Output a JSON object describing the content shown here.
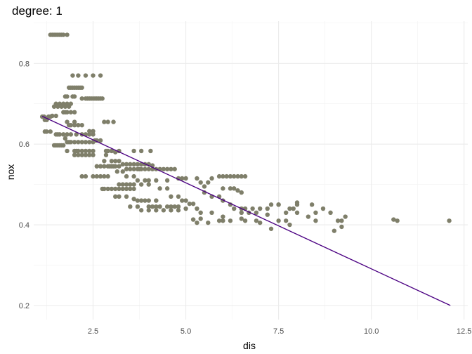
{
  "chart_data": {
    "type": "scatter",
    "title": "degree: 1",
    "xlabel": "dis",
    "ylabel": "nox",
    "xlim": [
      0.9,
      12.6
    ],
    "ylim": [
      0.165,
      0.905
    ],
    "xticks": [
      2.5,
      5.0,
      7.5,
      10.0,
      12.5
    ],
    "xtick_labels": [
      "2.5",
      "5.0",
      "7.5",
      "10.0",
      "12.5"
    ],
    "yticks": [
      0.2,
      0.4,
      0.6,
      0.8
    ],
    "ytick_labels": [
      "0.2",
      "0.4",
      "0.6",
      "0.8"
    ],
    "grid": true,
    "point_color": "#7f7f6a",
    "line_color": "#4b0082",
    "series": [
      {
        "type": "scatter",
        "points": [
          [
            1.35,
            0.871
          ],
          [
            1.4,
            0.871
          ],
          [
            1.45,
            0.871
          ],
          [
            1.5,
            0.871
          ],
          [
            1.55,
            0.871
          ],
          [
            1.6,
            0.871
          ],
          [
            1.65,
            0.871
          ],
          [
            1.7,
            0.871
          ],
          [
            1.8,
            0.871
          ],
          [
            1.13,
            0.668
          ],
          [
            1.18,
            0.668
          ],
          [
            1.2,
            0.66
          ],
          [
            1.25,
            0.66
          ],
          [
            1.3,
            0.668
          ],
          [
            1.35,
            0.668
          ],
          [
            1.4,
            0.67
          ],
          [
            1.5,
            0.67
          ],
          [
            1.45,
            0.693
          ],
          [
            1.5,
            0.7
          ],
          [
            1.55,
            0.693
          ],
          [
            1.6,
            0.7
          ],
          [
            1.65,
            0.693
          ],
          [
            1.7,
            0.7
          ],
          [
            1.75,
            0.693
          ],
          [
            1.8,
            0.7
          ],
          [
            1.85,
            0.693
          ],
          [
            1.9,
            0.7
          ],
          [
            1.75,
            0.718
          ],
          [
            1.8,
            0.718
          ],
          [
            1.95,
            0.718
          ],
          [
            2.0,
            0.718
          ],
          [
            2.1,
            0.77
          ],
          [
            1.95,
            0.77
          ],
          [
            2.3,
            0.77
          ],
          [
            2.5,
            0.77
          ],
          [
            2.7,
            0.77
          ],
          [
            1.85,
            0.74
          ],
          [
            1.9,
            0.74
          ],
          [
            1.95,
            0.74
          ],
          [
            2.0,
            0.74
          ],
          [
            2.05,
            0.74
          ],
          [
            2.1,
            0.74
          ],
          [
            2.15,
            0.74
          ],
          [
            2.2,
            0.74
          ],
          [
            2.2,
            0.713
          ],
          [
            2.3,
            0.713
          ],
          [
            2.35,
            0.713
          ],
          [
            2.4,
            0.713
          ],
          [
            2.45,
            0.713
          ],
          [
            2.5,
            0.713
          ],
          [
            2.55,
            0.713
          ],
          [
            2.6,
            0.713
          ],
          [
            2.65,
            0.713
          ],
          [
            2.7,
            0.713
          ],
          [
            2.75,
            0.713
          ],
          [
            1.7,
            0.679
          ],
          [
            1.8,
            0.679
          ],
          [
            1.9,
            0.679
          ],
          [
            2.0,
            0.679
          ],
          [
            1.75,
            0.679
          ],
          [
            1.8,
            0.655
          ],
          [
            1.85,
            0.647
          ],
          [
            1.9,
            0.647
          ],
          [
            2.0,
            0.647
          ],
          [
            2.1,
            0.647
          ],
          [
            2.2,
            0.647
          ],
          [
            2.0,
            0.655
          ],
          [
            1.2,
            0.631
          ],
          [
            1.25,
            0.631
          ],
          [
            1.35,
            0.631
          ],
          [
            1.55,
            0.624
          ],
          [
            1.5,
            0.624
          ],
          [
            1.6,
            0.624
          ],
          [
            1.7,
            0.624
          ],
          [
            1.75,
            0.614
          ],
          [
            1.8,
            0.605
          ],
          [
            1.85,
            0.605
          ],
          [
            1.9,
            0.605
          ],
          [
            2.0,
            0.605
          ],
          [
            2.1,
            0.605
          ],
          [
            2.2,
            0.605
          ],
          [
            2.3,
            0.605
          ],
          [
            2.4,
            0.605
          ],
          [
            2.5,
            0.605
          ],
          [
            1.8,
            0.624
          ],
          [
            1.9,
            0.624
          ],
          [
            2.05,
            0.624
          ],
          [
            2.2,
            0.624
          ],
          [
            2.3,
            0.624
          ],
          [
            2.4,
            0.624
          ],
          [
            2.5,
            0.624
          ],
          [
            2.4,
            0.632
          ],
          [
            2.5,
            0.632
          ],
          [
            2.55,
            0.609
          ],
          [
            2.6,
            0.609
          ],
          [
            2.7,
            0.609
          ],
          [
            2.8,
            0.655
          ],
          [
            2.9,
            0.655
          ],
          [
            3.05,
            0.655
          ],
          [
            1.45,
            0.597
          ],
          [
            1.5,
            0.597
          ],
          [
            1.55,
            0.597
          ],
          [
            1.6,
            0.597
          ],
          [
            1.65,
            0.597
          ],
          [
            1.7,
            0.597
          ],
          [
            1.8,
            0.583
          ],
          [
            2.0,
            0.583
          ],
          [
            2.05,
            0.583
          ],
          [
            2.1,
            0.583
          ],
          [
            2.2,
            0.583
          ],
          [
            2.3,
            0.583
          ],
          [
            2.4,
            0.583
          ],
          [
            2.5,
            0.583
          ],
          [
            2.0,
            0.573
          ],
          [
            2.1,
            0.573
          ],
          [
            2.2,
            0.573
          ],
          [
            2.3,
            0.573
          ],
          [
            2.4,
            0.573
          ],
          [
            2.5,
            0.573
          ],
          [
            2.85,
            0.583
          ],
          [
            2.9,
            0.583
          ],
          [
            3.0,
            0.583
          ],
          [
            3.1,
            0.58
          ],
          [
            3.2,
            0.583
          ],
          [
            2.85,
            0.573
          ],
          [
            3.6,
            0.583
          ],
          [
            3.8,
            0.583
          ],
          [
            4.05,
            0.583
          ],
          [
            2.2,
            0.52
          ],
          [
            2.3,
            0.52
          ],
          [
            2.5,
            0.52
          ],
          [
            2.6,
            0.52
          ],
          [
            2.7,
            0.52
          ],
          [
            2.8,
            0.52
          ],
          [
            2.9,
            0.52
          ],
          [
            2.6,
            0.545
          ],
          [
            2.7,
            0.545
          ],
          [
            2.8,
            0.545
          ],
          [
            2.9,
            0.545
          ],
          [
            2.95,
            0.545
          ],
          [
            3.0,
            0.545
          ],
          [
            3.05,
            0.545
          ],
          [
            3.1,
            0.545
          ],
          [
            3.2,
            0.545
          ],
          [
            2.8,
            0.558
          ],
          [
            3.0,
            0.558
          ],
          [
            3.1,
            0.558
          ],
          [
            3.2,
            0.558
          ],
          [
            3.15,
            0.532
          ],
          [
            3.3,
            0.532
          ],
          [
            3.4,
            0.538
          ],
          [
            3.5,
            0.538
          ],
          [
            3.6,
            0.538
          ],
          [
            3.7,
            0.538
          ],
          [
            3.75,
            0.538
          ],
          [
            3.8,
            0.538
          ],
          [
            3.9,
            0.538
          ],
          [
            4.0,
            0.538
          ],
          [
            4.1,
            0.538
          ],
          [
            4.2,
            0.538
          ],
          [
            4.3,
            0.538
          ],
          [
            4.4,
            0.538
          ],
          [
            4.5,
            0.538
          ],
          [
            4.6,
            0.538
          ],
          [
            4.7,
            0.538
          ],
          [
            3.3,
            0.55
          ],
          [
            3.4,
            0.55
          ],
          [
            3.5,
            0.55
          ],
          [
            3.6,
            0.55
          ],
          [
            3.7,
            0.55
          ],
          [
            3.8,
            0.55
          ],
          [
            3.9,
            0.55
          ],
          [
            4.0,
            0.55
          ],
          [
            4.1,
            0.547
          ],
          [
            3.4,
            0.52
          ],
          [
            3.6,
            0.52
          ],
          [
            3.7,
            0.51
          ],
          [
            3.9,
            0.51
          ],
          [
            4.0,
            0.51
          ],
          [
            4.2,
            0.51
          ],
          [
            4.5,
            0.51
          ],
          [
            2.75,
            0.489
          ],
          [
            2.8,
            0.489
          ],
          [
            2.9,
            0.489
          ],
          [
            3.0,
            0.489
          ],
          [
            3.1,
            0.489
          ],
          [
            3.2,
            0.489
          ],
          [
            3.3,
            0.489
          ],
          [
            3.4,
            0.489
          ],
          [
            3.5,
            0.489
          ],
          [
            3.6,
            0.489
          ],
          [
            3.2,
            0.5
          ],
          [
            3.3,
            0.5
          ],
          [
            3.4,
            0.5
          ],
          [
            3.5,
            0.5
          ],
          [
            3.6,
            0.5
          ],
          [
            3.8,
            0.5
          ],
          [
            4.0,
            0.5
          ],
          [
            3.1,
            0.47
          ],
          [
            3.2,
            0.47
          ],
          [
            3.4,
            0.47
          ],
          [
            3.6,
            0.464
          ],
          [
            3.7,
            0.46
          ],
          [
            3.8,
            0.46
          ],
          [
            3.9,
            0.46
          ],
          [
            4.0,
            0.46
          ],
          [
            4.2,
            0.46
          ],
          [
            3.5,
            0.445
          ],
          [
            3.7,
            0.445
          ],
          [
            4.0,
            0.445
          ],
          [
            4.1,
            0.445
          ],
          [
            4.2,
            0.445
          ],
          [
            4.3,
            0.445
          ],
          [
            4.5,
            0.445
          ],
          [
            3.8,
            0.436
          ],
          [
            4.0,
            0.436
          ],
          [
            4.2,
            0.436
          ],
          [
            4.4,
            0.436
          ],
          [
            4.6,
            0.436
          ],
          [
            4.8,
            0.436
          ],
          [
            4.3,
            0.49
          ],
          [
            4.5,
            0.49
          ],
          [
            4.6,
            0.47
          ],
          [
            4.8,
            0.47
          ],
          [
            4.9,
            0.46
          ],
          [
            5.0,
            0.46
          ],
          [
            5.1,
            0.452
          ],
          [
            5.2,
            0.452
          ],
          [
            4.6,
            0.445
          ],
          [
            4.7,
            0.445
          ],
          [
            4.8,
            0.445
          ],
          [
            5.0,
            0.44
          ],
          [
            5.3,
            0.44
          ],
          [
            5.4,
            0.43
          ],
          [
            5.2,
            0.413
          ],
          [
            5.3,
            0.405
          ],
          [
            5.4,
            0.415
          ],
          [
            5.6,
            0.405
          ],
          [
            5.7,
            0.43
          ],
          [
            5.9,
            0.41
          ],
          [
            6.0,
            0.42
          ],
          [
            4.8,
            0.515
          ],
          [
            4.9,
            0.515
          ],
          [
            5.0,
            0.515
          ],
          [
            5.3,
            0.515
          ],
          [
            5.4,
            0.505
          ],
          [
            5.5,
            0.495
          ],
          [
            5.6,
            0.505
          ],
          [
            5.7,
            0.515
          ],
          [
            5.9,
            0.52
          ],
          [
            6.0,
            0.52
          ],
          [
            6.1,
            0.52
          ],
          [
            6.2,
            0.52
          ],
          [
            6.3,
            0.52
          ],
          [
            6.4,
            0.52
          ],
          [
            6.5,
            0.52
          ],
          [
            6.6,
            0.52
          ],
          [
            6.0,
            0.49
          ],
          [
            6.2,
            0.49
          ],
          [
            6.3,
            0.49
          ],
          [
            6.4,
            0.485
          ],
          [
            6.5,
            0.48
          ],
          [
            5.5,
            0.48
          ],
          [
            5.7,
            0.47
          ],
          [
            5.9,
            0.47
          ],
          [
            6.0,
            0.46
          ],
          [
            6.2,
            0.45
          ],
          [
            6.3,
            0.44
          ],
          [
            6.5,
            0.44
          ],
          [
            6.6,
            0.44
          ],
          [
            6.8,
            0.44
          ],
          [
            6.5,
            0.43
          ],
          [
            6.7,
            0.43
          ],
          [
            6.9,
            0.43
          ],
          [
            7.0,
            0.44
          ],
          [
            7.2,
            0.44
          ],
          [
            7.3,
            0.45
          ],
          [
            7.5,
            0.45
          ],
          [
            7.7,
            0.43
          ],
          [
            7.8,
            0.44
          ],
          [
            6.0,
            0.41
          ],
          [
            6.2,
            0.41
          ],
          [
            6.5,
            0.415
          ],
          [
            6.6,
            0.41
          ],
          [
            6.9,
            0.41
          ],
          [
            7.0,
            0.405
          ],
          [
            7.3,
            0.39
          ],
          [
            7.5,
            0.41
          ],
          [
            7.7,
            0.41
          ],
          [
            7.9,
            0.44
          ],
          [
            8.0,
            0.43
          ],
          [
            8.0,
            0.45
          ],
          [
            8.3,
            0.42
          ],
          [
            8.4,
            0.45
          ],
          [
            8.5,
            0.43
          ],
          [
            8.7,
            0.44
          ],
          [
            8.9,
            0.43
          ],
          [
            9.1,
            0.41
          ],
          [
            9.2,
            0.41
          ],
          [
            7.5,
            0.45
          ],
          [
            8.0,
            0.455
          ],
          [
            7.2,
            0.425
          ],
          [
            7.8,
            0.4
          ],
          [
            8.5,
            0.41
          ],
          [
            9.0,
            0.385
          ],
          [
            9.2,
            0.395
          ],
          [
            9.3,
            0.42
          ],
          [
            10.6,
            0.413
          ],
          [
            10.7,
            0.41
          ],
          [
            12.1,
            0.41
          ]
        ]
      },
      {
        "type": "line",
        "name": "",
        "points": [
          [
            1.13,
            0.669
          ],
          [
            12.13,
            0.2
          ]
        ]
      }
    ]
  }
}
